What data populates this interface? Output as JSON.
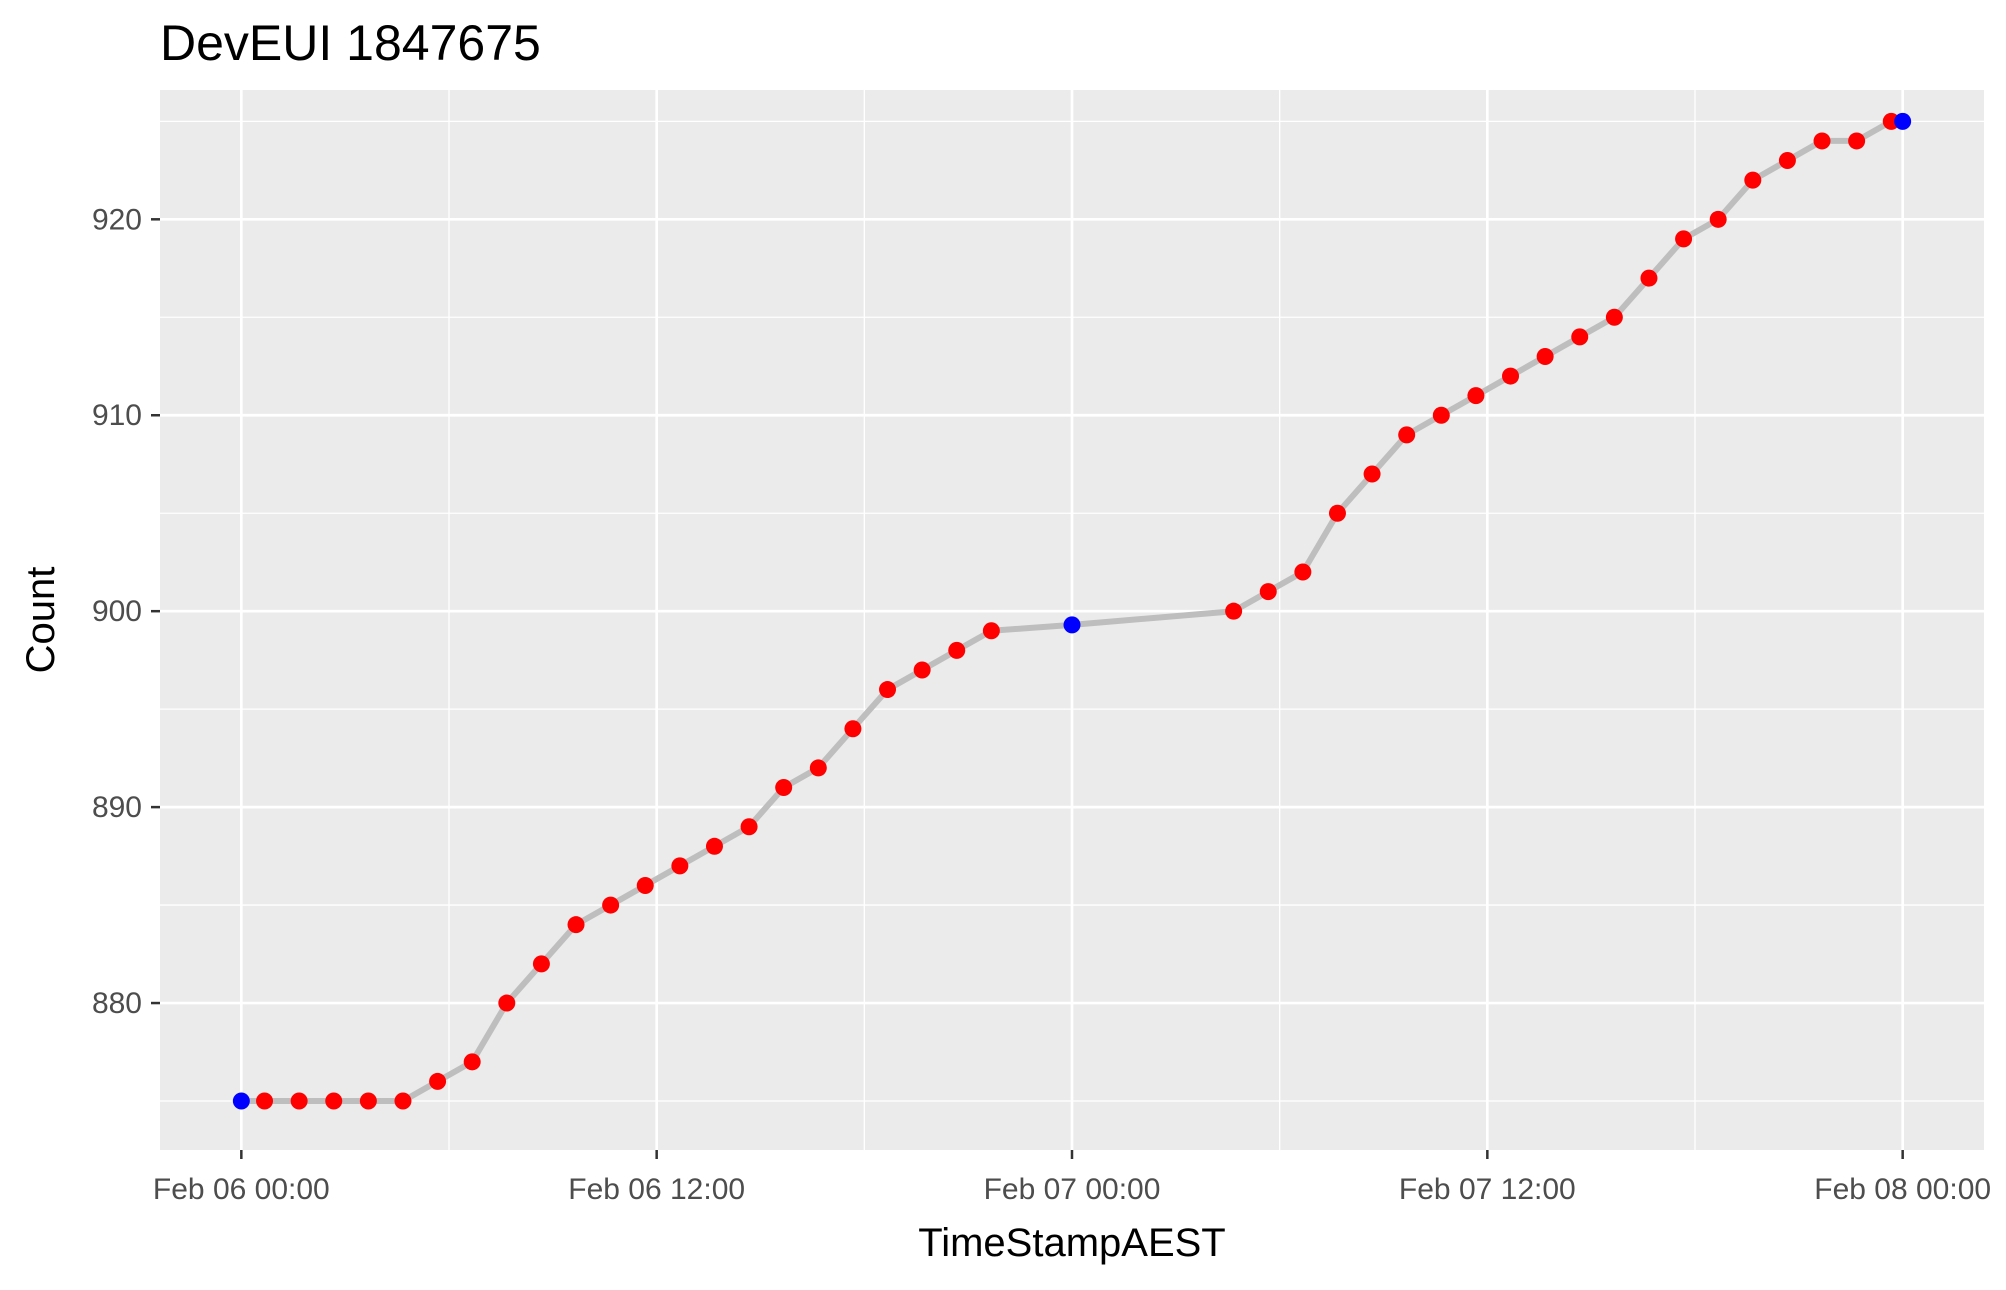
{
  "chart_data": {
    "type": "line",
    "title": "DevEUI 1847675",
    "xlabel": "TimeStampAEST",
    "ylabel": "Count",
    "x_unit": "hours",
    "xlim_hours": [
      -2.35,
      50.35
    ],
    "ylim": [
      872.5,
      926.6
    ],
    "x_ticks": [
      {
        "label": "Feb 06 00:00",
        "hours": 0
      },
      {
        "label": "Feb 06 12:00",
        "hours": 12
      },
      {
        "label": "Feb 07 00:00",
        "hours": 24
      },
      {
        "label": "Feb 07 12:00",
        "hours": 36
      },
      {
        "label": "Feb 08 00:00",
        "hours": 48
      }
    ],
    "y_ticks": [
      880,
      890,
      900,
      910,
      920
    ],
    "grid": true,
    "colors": {
      "panel": "#EBEBEB",
      "grid": "#FFFFFF",
      "line": "#BEBEBE",
      "point": "#FF0000",
      "highlight_point": "#0000FF"
    },
    "series": [
      {
        "points": [
          {
            "x": "Feb 06 00:00",
            "hours": 0.0,
            "y": 875,
            "highlight": true
          },
          {
            "x": "Feb 06 00:40",
            "hours": 0.67,
            "y": 875
          },
          {
            "x": "Feb 06 01:40",
            "hours": 1.67,
            "y": 875
          },
          {
            "x": "Feb 06 02:40",
            "hours": 2.67,
            "y": 875
          },
          {
            "x": "Feb 06 03:40",
            "hours": 3.67,
            "y": 875
          },
          {
            "x": "Feb 06 04:40",
            "hours": 4.67,
            "y": 875
          },
          {
            "x": "Feb 06 05:40",
            "hours": 5.67,
            "y": 876
          },
          {
            "x": "Feb 06 06:40",
            "hours": 6.67,
            "y": 877
          },
          {
            "x": "Feb 06 07:40",
            "hours": 7.67,
            "y": 880
          },
          {
            "x": "Feb 06 08:40",
            "hours": 8.67,
            "y": 882
          },
          {
            "x": "Feb 06 09:40",
            "hours": 9.67,
            "y": 884
          },
          {
            "x": "Feb 06 10:40",
            "hours": 10.67,
            "y": 885
          },
          {
            "x": "Feb 06 11:40",
            "hours": 11.67,
            "y": 886
          },
          {
            "x": "Feb 06 12:40",
            "hours": 12.67,
            "y": 887
          },
          {
            "x": "Feb 06 13:40",
            "hours": 13.67,
            "y": 888
          },
          {
            "x": "Feb 06 14:40",
            "hours": 14.67,
            "y": 889
          },
          {
            "x": "Feb 06 15:40",
            "hours": 15.67,
            "y": 891
          },
          {
            "x": "Feb 06 16:40",
            "hours": 16.67,
            "y": 892
          },
          {
            "x": "Feb 06 17:40",
            "hours": 17.67,
            "y": 894
          },
          {
            "x": "Feb 06 18:40",
            "hours": 18.67,
            "y": 896
          },
          {
            "x": "Feb 06 19:40",
            "hours": 19.67,
            "y": 897
          },
          {
            "x": "Feb 06 20:40",
            "hours": 20.67,
            "y": 898
          },
          {
            "x": "Feb 06 21:40",
            "hours": 21.67,
            "y": 899
          },
          {
            "x": "Feb 07 00:00",
            "hours": 24.0,
            "y": 899.3,
            "highlight": true
          },
          {
            "x": "Feb 07 04:40",
            "hours": 28.67,
            "y": 900
          },
          {
            "x": "Feb 07 05:40",
            "hours": 29.67,
            "y": 901
          },
          {
            "x": "Feb 07 06:40",
            "hours": 30.67,
            "y": 902
          },
          {
            "x": "Feb 07 07:40",
            "hours": 31.67,
            "y": 905
          },
          {
            "x": "Feb 07 08:40",
            "hours": 32.67,
            "y": 907
          },
          {
            "x": "Feb 07 09:40",
            "hours": 33.67,
            "y": 909
          },
          {
            "x": "Feb 07 10:40",
            "hours": 34.67,
            "y": 910
          },
          {
            "x": "Feb 07 11:40",
            "hours": 35.67,
            "y": 911
          },
          {
            "x": "Feb 07 12:40",
            "hours": 36.67,
            "y": 912
          },
          {
            "x": "Feb 07 13:40",
            "hours": 37.67,
            "y": 913
          },
          {
            "x": "Feb 07 14:40",
            "hours": 38.67,
            "y": 914
          },
          {
            "x": "Feb 07 15:40",
            "hours": 39.67,
            "y": 915
          },
          {
            "x": "Feb 07 16:40",
            "hours": 40.67,
            "y": 917
          },
          {
            "x": "Feb 07 17:40",
            "hours": 41.67,
            "y": 919
          },
          {
            "x": "Feb 07 18:40",
            "hours": 42.67,
            "y": 920
          },
          {
            "x": "Feb 07 19:40",
            "hours": 43.67,
            "y": 922
          },
          {
            "x": "Feb 07 20:40",
            "hours": 44.67,
            "y": 923
          },
          {
            "x": "Feb 07 21:40",
            "hours": 45.67,
            "y": 924
          },
          {
            "x": "Feb 07 22:40",
            "hours": 46.67,
            "y": 924
          },
          {
            "x": "Feb 07 23:40",
            "hours": 47.67,
            "y": 925
          },
          {
            "x": "Feb 08 00:00",
            "hours": 48.0,
            "y": 925,
            "highlight": true
          }
        ]
      }
    ]
  }
}
